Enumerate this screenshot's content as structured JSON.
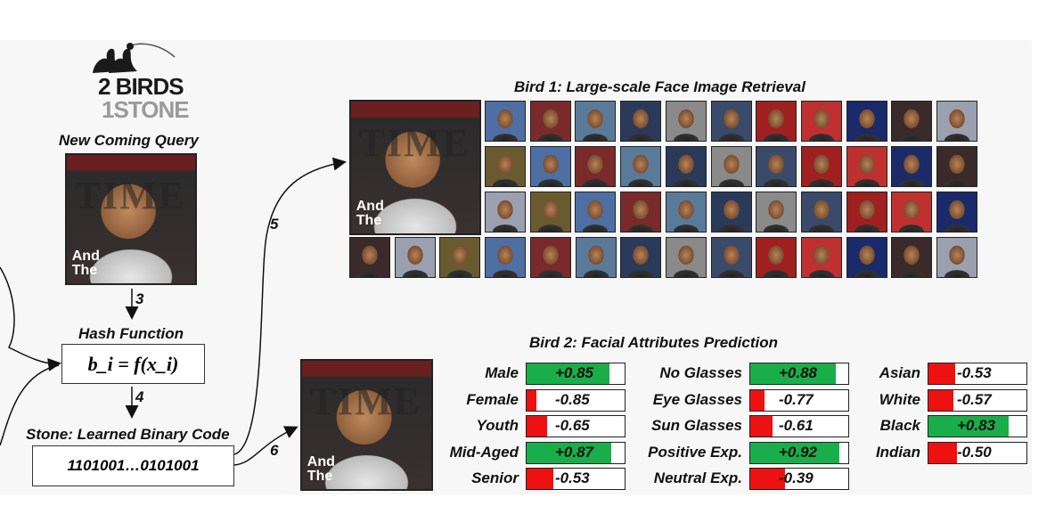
{
  "logo": {
    "line1": "2 BIRDS",
    "line2": "1STONE"
  },
  "query_label": "New Coming Query",
  "hash_label": "Hash Function",
  "hash_formula": "b_i = f(x_i)",
  "stone_label": "Stone: Learned Binary Code",
  "binary_code": "1101001…0101001",
  "steps": {
    "s3": "3",
    "s4": "4",
    "s5": "5",
    "s6": "6"
  },
  "bird1_title": "Bird 1: Large-scale Face Image Retrieval",
  "bird2_title": "Bird 2: Facial Attributes Prediction",
  "cover_text": {
    "masthead": "TIME",
    "sub1": "And",
    "sub2": "The"
  },
  "colors": {
    "positive": "#1aae4a",
    "negative": "#ee1111"
  },
  "attributes": {
    "col1": [
      {
        "name": "Male",
        "value": "+0.85",
        "score": 0.85
      },
      {
        "name": "Female",
        "value": "-0.85",
        "score": -0.85
      },
      {
        "name": "Youth",
        "value": "-0.65",
        "score": -0.65
      },
      {
        "name": "Mid-Aged",
        "value": "+0.87",
        "score": 0.87
      },
      {
        "name": "Senior",
        "value": "-0.53",
        "score": -0.53
      }
    ],
    "col2": [
      {
        "name": "No Glasses",
        "value": "+0.88",
        "score": 0.88
      },
      {
        "name": "Eye Glasses",
        "value": "-0.77",
        "score": -0.77
      },
      {
        "name": "Sun Glasses",
        "value": "-0.61",
        "score": -0.61
      },
      {
        "name": "Positive Exp.",
        "value": "+0.92",
        "score": 0.92
      },
      {
        "name": "Neutral Exp.",
        "value": "-0.39",
        "score": -0.39
      }
    ],
    "col3": [
      {
        "name": "Asian",
        "value": "-0.53",
        "score": -0.53
      },
      {
        "name": "White",
        "value": "-0.57",
        "score": -0.57
      },
      {
        "name": "Black",
        "value": "+0.83",
        "score": 0.83
      },
      {
        "name": "Indian",
        "value": "-0.50",
        "score": -0.5
      }
    ]
  }
}
